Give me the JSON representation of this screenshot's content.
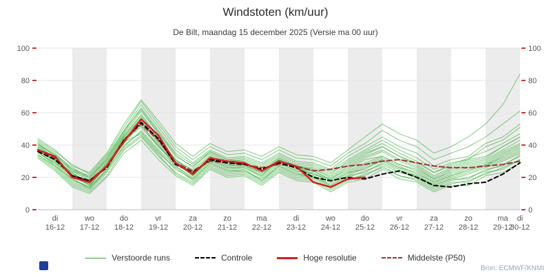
{
  "title": "Windstoten (km/uur)",
  "subtitle": "De Bilt, maandag 15 december 2025 (Versie ma 00 uur)",
  "attribution": "Bron: ECMWF/KNMI",
  "chart_data": {
    "type": "line",
    "title": "Windstoten (km/uur)",
    "subtitle": "De Bilt, maandag 15 december 2025 (Versie ma 00 uur)",
    "x_unit": "12-hour steps starting 16-12 00:00",
    "ylim": [
      0,
      100
    ],
    "y_ticks": [
      0,
      20,
      40,
      60,
      80,
      100
    ],
    "grid": true,
    "legend_position": "bottom",
    "x_ticks": [
      {
        "weekday": "di",
        "date": "16-12"
      },
      {
        "weekday": "wo",
        "date": "17-12"
      },
      {
        "weekday": "do",
        "date": "18-12"
      },
      {
        "weekday": "vr",
        "date": "19-12"
      },
      {
        "weekday": "za",
        "date": "20-12"
      },
      {
        "weekday": "zo",
        "date": "21-12"
      },
      {
        "weekday": "ma",
        "date": "22-12"
      },
      {
        "weekday": "di",
        "date": "23-12"
      },
      {
        "weekday": "wo",
        "date": "24-12"
      },
      {
        "weekday": "do",
        "date": "25-12"
      },
      {
        "weekday": "vr",
        "date": "26-12"
      },
      {
        "weekday": "za",
        "date": "27-12"
      },
      {
        "weekday": "zo",
        "date": "28-12"
      },
      {
        "weekday": "ma",
        "date": "29-12"
      },
      {
        "weekday": "di",
        "date": "30-12"
      }
    ],
    "legend": [
      {
        "label": "Verstoorde runs",
        "color": "#2fa82f",
        "line": "solid",
        "weight": 1.5
      },
      {
        "label": "Controle",
        "color": "#000000",
        "line": "dashed",
        "weight": 2
      },
      {
        "label": "Hoge resolutie",
        "color": "#d41f1f",
        "line": "solid",
        "weight": 3
      },
      {
        "label": "Middelste (P50)",
        "color": "#993333",
        "line": "dashed",
        "weight": 2
      }
    ],
    "colors": {
      "verstoorde": "#2fa82f",
      "controle": "#000000",
      "hoge_resolutie": "#d41f1f",
      "middelste": "#993333",
      "band": "#ececec",
      "grid": "#e3e3e3",
      "tick": "#cc3333",
      "axis_text": "#555555",
      "axis_line": "#bbbbbb"
    },
    "series": {
      "hoge_resolutie": [
        37,
        33,
        20,
        17,
        27,
        42,
        56,
        46,
        29,
        22,
        32,
        30,
        29,
        24,
        30,
        27,
        17,
        14,
        19,
        20
      ],
      "controle": [
        36,
        31,
        21,
        18,
        26,
        43,
        54,
        44,
        28,
        23,
        31,
        29,
        28,
        25,
        29,
        26,
        20,
        18,
        20,
        19,
        22,
        24,
        20,
        15,
        14,
        16,
        17,
        22,
        29
      ],
      "middelste_p50": [
        37,
        32,
        21,
        18,
        27,
        43,
        53,
        43,
        29,
        24,
        30,
        29,
        28,
        26,
        28,
        27,
        24,
        25,
        27,
        28,
        30,
        31,
        29,
        27,
        26,
        26,
        27,
        28,
        30
      ],
      "verstoorde_runs": [
        [
          38,
          30,
          23,
          15,
          27,
          45,
          56,
          43,
          31,
          22,
          33,
          28,
          27,
          21,
          31,
          26,
          22,
          19,
          25,
          31,
          33,
          28,
          25,
          19,
          23,
          27,
          29,
          35,
          40
        ],
        [
          36,
          27,
          19,
          13,
          25,
          39,
          49,
          37,
          27,
          19,
          29,
          24,
          25,
          18,
          27,
          22,
          21,
          15,
          21,
          23,
          29,
          24,
          21,
          15,
          19,
          19,
          25,
          27,
          34
        ],
        [
          41,
          33,
          25,
          19,
          31,
          47,
          61,
          47,
          33,
          27,
          35,
          30,
          31,
          27,
          33,
          28,
          27,
          23,
          29,
          35,
          39,
          33,
          29,
          23,
          27,
          31,
          33,
          39,
          45
        ],
        [
          35,
          29,
          19,
          14,
          29,
          41,
          53,
          39,
          29,
          21,
          31,
          26,
          27,
          23,
          29,
          24,
          23,
          17,
          23,
          25,
          31,
          26,
          23,
          17,
          21,
          25,
          27,
          31,
          36
        ],
        [
          42,
          35,
          25,
          21,
          33,
          49,
          65,
          51,
          37,
          29,
          37,
          32,
          33,
          29,
          35,
          30,
          29,
          25,
          33,
          39,
          45,
          39,
          35,
          27,
          31,
          33,
          41,
          45,
          53
        ],
        [
          33,
          25,
          15,
          11,
          21,
          37,
          45,
          33,
          23,
          17,
          27,
          22,
          23,
          17,
          25,
          20,
          19,
          13,
          19,
          21,
          27,
          21,
          19,
          13,
          17,
          17,
          23,
          25,
          31
        ],
        [
          39,
          32,
          22,
          17,
          29,
          46,
          59,
          45,
          30,
          25,
          34,
          29,
          29,
          24,
          32,
          27,
          25,
          20,
          27,
          33,
          37,
          31,
          27,
          20,
          25,
          29,
          31,
          37,
          43
        ],
        [
          37,
          30,
          20,
          16,
          27,
          44,
          55,
          41,
          28,
          22,
          32,
          27,
          28,
          22,
          30,
          25,
          24,
          18,
          24,
          29,
          33,
          28,
          24,
          18,
          22,
          26,
          28,
          34,
          39
        ],
        [
          40,
          34,
          24,
          20,
          31,
          48,
          63,
          49,
          35,
          28,
          36,
          31,
          32,
          28,
          34,
          29,
          28,
          24,
          31,
          37,
          43,
          37,
          32,
          25,
          29,
          31,
          39,
          43,
          51
        ],
        [
          32,
          24,
          14,
          10,
          20,
          35,
          43,
          31,
          21,
          15,
          25,
          20,
          21,
          15,
          23,
          18,
          17,
          11,
          17,
          19,
          25,
          19,
          17,
          11,
          15,
          15,
          21,
          23,
          29
        ],
        [
          38,
          31,
          21,
          15,
          27,
          43,
          51,
          39,
          29,
          21,
          31,
          26,
          26,
          21,
          29,
          24,
          22,
          17,
          23,
          28,
          32,
          27,
          22,
          17,
          21,
          24,
          28,
          32,
          37
        ],
        [
          36,
          28,
          18,
          14,
          25,
          42,
          47,
          35,
          26,
          18,
          28,
          23,
          24,
          18,
          26,
          21,
          20,
          14,
          20,
          24,
          28,
          23,
          20,
          14,
          18,
          20,
          24,
          28,
          33
        ],
        [
          40,
          32,
          24,
          18,
          30,
          46,
          58,
          44,
          31,
          24,
          33,
          28,
          29,
          24,
          31,
          26,
          25,
          21,
          28,
          34,
          39,
          33,
          28,
          21,
          26,
          30,
          32,
          39,
          45
        ],
        [
          43,
          36,
          28,
          22,
          34,
          51,
          67,
          53,
          39,
          31,
          39,
          34,
          35,
          31,
          37,
          32,
          31,
          27,
          35,
          41,
          49,
          43,
          39,
          31,
          35,
          39,
          45,
          53,
          61
        ],
        [
          34,
          26,
          16,
          12,
          23,
          38,
          46,
          34,
          22,
          16,
          26,
          21,
          22,
          16,
          24,
          19,
          18,
          12,
          18,
          22,
          26,
          21,
          18,
          12,
          16,
          18,
          22,
          26,
          31
        ],
        [
          39,
          31,
          23,
          16,
          28,
          45,
          57,
          42,
          29,
          23,
          32,
          27,
          28,
          23,
          31,
          26,
          24,
          19,
          26,
          32,
          36,
          30,
          26,
          19,
          24,
          28,
          30,
          36,
          41
        ],
        [
          44,
          37,
          27,
          23,
          35,
          53,
          68,
          55,
          41,
          33,
          41,
          36,
          37,
          33,
          39,
          34,
          33,
          29,
          37,
          45,
          53,
          47,
          43,
          35,
          39,
          45,
          53,
          65,
          84
        ],
        [
          34,
          27,
          17,
          13,
          24,
          40,
          48,
          36,
          25,
          19,
          29,
          24,
          24,
          19,
          27,
          22,
          20,
          15,
          21,
          26,
          30,
          25,
          20,
          15,
          19,
          22,
          26,
          30,
          35
        ],
        [
          37,
          29,
          21,
          17,
          26,
          44,
          52,
          40,
          27,
          20,
          30,
          25,
          26,
          20,
          28,
          23,
          21,
          16,
          22,
          27,
          31,
          26,
          21,
          16,
          20,
          23,
          27,
          33,
          38
        ],
        [
          41,
          34,
          26,
          20,
          32,
          49,
          62,
          48,
          34,
          26,
          36,
          31,
          30,
          26,
          32,
          27,
          26,
          22,
          30,
          36,
          41,
          35,
          30,
          23,
          28,
          32,
          36,
          41,
          47
        ]
      ]
    }
  }
}
